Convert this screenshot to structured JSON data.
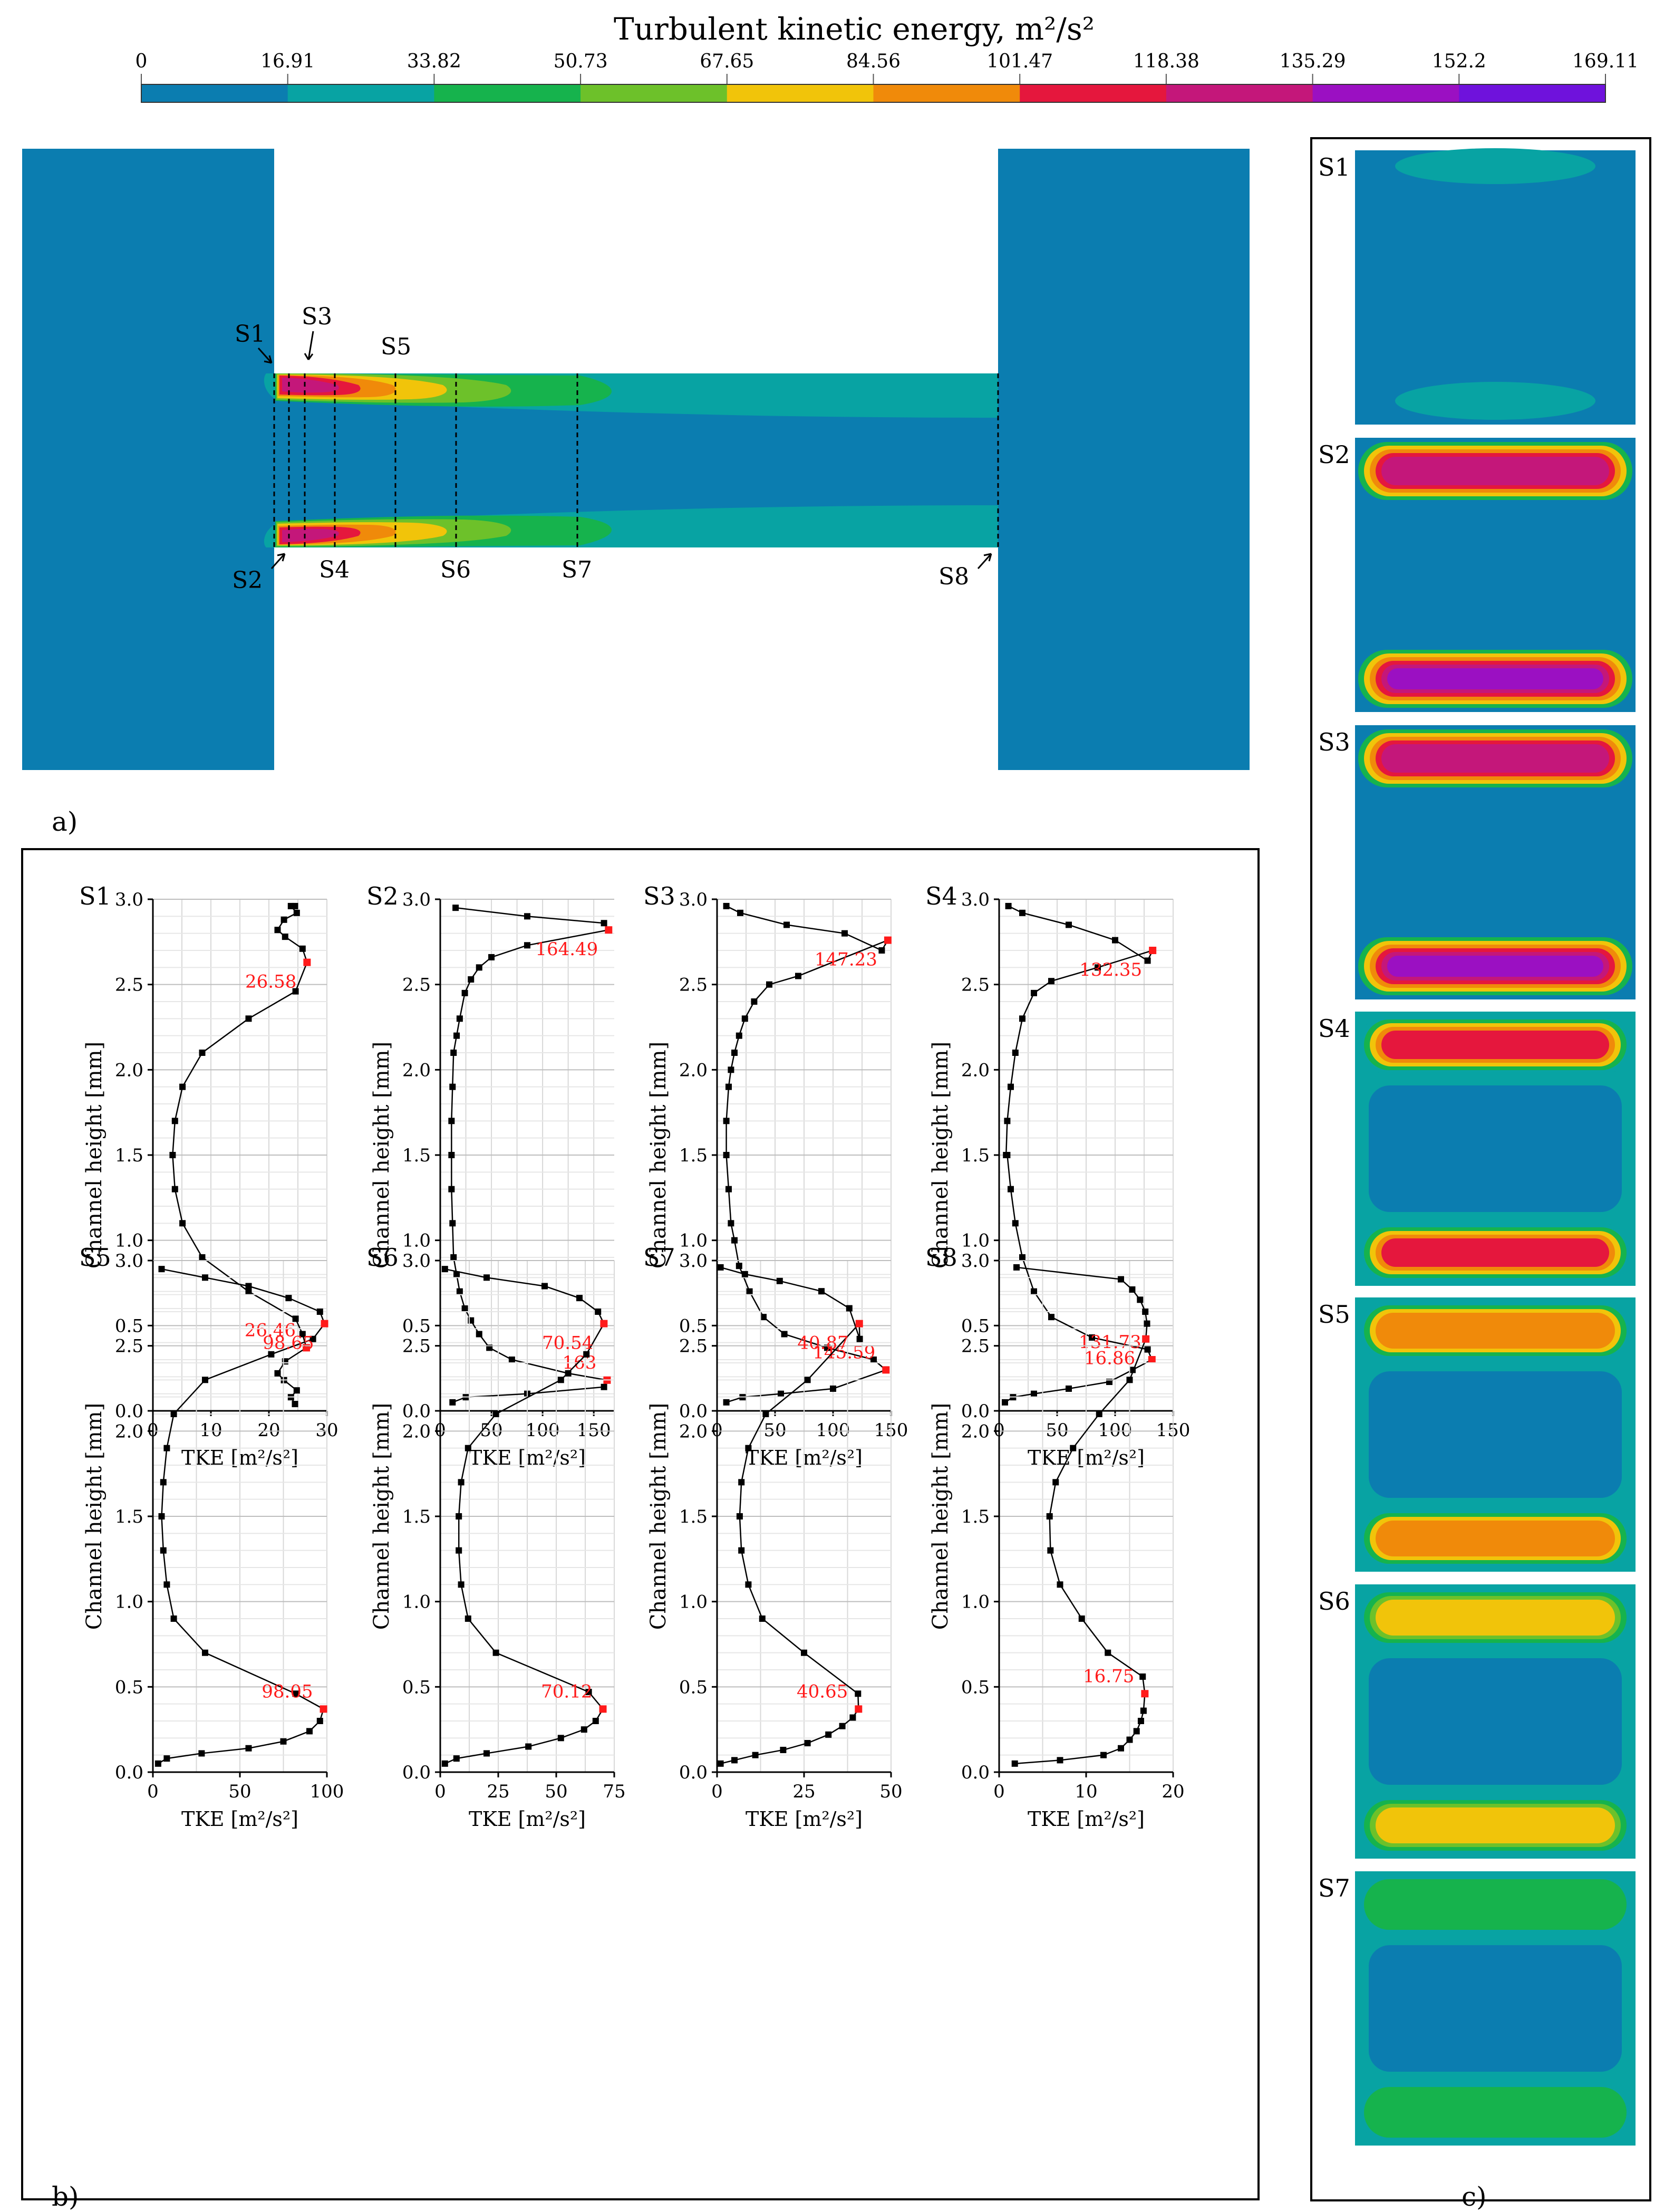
{
  "colorbar": {
    "title": "Turbulent kinetic energy, m²/s²",
    "ticks": [
      "0",
      "16.91",
      "33.82",
      "50.73",
      "67.65",
      "84.56",
      "101.47",
      "118.38",
      "135.29",
      "152.2",
      "169.11"
    ],
    "colors": [
      "#0b7db0",
      "#08a3a3",
      "#16b34d",
      "#6dc12a",
      "#f1c40a",
      "#f08a0a",
      "#e5173d",
      "#c4177a",
      "#9b10c2",
      "#6f12dc"
    ]
  },
  "colors": {
    "background_tke": "#0b7db0",
    "low_tke": "#08a3a3",
    "green_tke": "#16b34d",
    "yellowgreen_tke": "#6dc12a",
    "yellow_tke": "#f1c40a",
    "orange_tke": "#f08a0a",
    "red_tke": "#e5173d",
    "magenta_tke": "#c4177a",
    "purple_tke": "#9b10c2",
    "highlight_point": "#ff1a1a"
  },
  "panel_a": {
    "label": "a)",
    "section_labels": [
      "S1",
      "S2",
      "S3",
      "S4",
      "S5",
      "S6",
      "S7",
      "S8"
    ]
  },
  "panel_b": {
    "label": "b)"
  },
  "panel_c": {
    "label": "c)",
    "sections": [
      "S1",
      "S2",
      "S3",
      "S4",
      "S5",
      "S6",
      "S7"
    ]
  },
  "chart_data": [
    {
      "type": "line",
      "title": "S1",
      "xlabel": "TKE [m²/s²]",
      "ylabel": "Channel height [mm]",
      "xlim": [
        0,
        30
      ],
      "xticks": [
        0,
        10,
        20,
        30
      ],
      "ylim": [
        0,
        3
      ],
      "yticks": [
        0,
        0.5,
        1,
        1.5,
        2,
        2.5,
        3
      ],
      "series": [
        {
          "name": "S1",
          "x": [
            24.5,
            23.8,
            24.8,
            22.6,
            21.5,
            22.8,
            26.46,
            25.8,
            24.6,
            16.5,
            8.5,
            5.1,
            3.8,
            3.4,
            3.8,
            5.1,
            8.5,
            16.5,
            24.6,
            26.58,
            25.8,
            22.8,
            21.5,
            22.6,
            24.8,
            23.8,
            24.5
          ],
          "y": [
            0.04,
            0.08,
            0.12,
            0.18,
            0.22,
            0.29,
            0.37,
            0.45,
            0.54,
            0.7,
            0.9,
            1.1,
            1.3,
            1.5,
            1.7,
            1.9,
            2.1,
            2.3,
            2.46,
            2.63,
            2.71,
            2.78,
            2.82,
            2.88,
            2.92,
            2.96,
            2.96
          ]
        }
      ],
      "annotations": [
        {
          "x": 26.46,
          "y": 0.37,
          "text": "26.46"
        },
        {
          "x": 26.58,
          "y": 2.63,
          "text": "26.58"
        }
      ]
    },
    {
      "type": "line",
      "title": "S2",
      "xlabel": "TKE [m²/s²]",
      "ylabel": "Channel height [mm]",
      "xlim": [
        0,
        170
      ],
      "xticks": [
        0,
        50,
        100,
        150
      ],
      "ylim": [
        0,
        3
      ],
      "yticks": [
        0,
        0.5,
        1,
        1.5,
        2,
        2.5,
        3
      ],
      "series": [
        {
          "name": "S2",
          "x": [
            12,
            25,
            85,
            160,
            163,
            125,
            70,
            48,
            38,
            30,
            24,
            19,
            16,
            13,
            12,
            11,
            11,
            11,
            12,
            13,
            16,
            19,
            24,
            30,
            38,
            50,
            85,
            164.49,
            160,
            85,
            15
          ],
          "y": [
            0.05,
            0.08,
            0.1,
            0.14,
            0.18,
            0.22,
            0.3,
            0.37,
            0.45,
            0.53,
            0.6,
            0.7,
            0.8,
            0.9,
            1.1,
            1.3,
            1.5,
            1.7,
            1.9,
            2.1,
            2.2,
            2.3,
            2.45,
            2.53,
            2.6,
            2.66,
            2.73,
            2.82,
            2.86,
            2.9,
            2.95
          ]
        }
      ],
      "annotations": [
        {
          "x": 163,
          "y": 0.18,
          "text": "163"
        },
        {
          "x": 164.49,
          "y": 2.82,
          "text": "164.49"
        }
      ]
    },
    {
      "type": "line",
      "title": "S3",
      "xlabel": "TKE [m²/s²]",
      "ylabel": "Channel height [mm]",
      "xlim": [
        0,
        150
      ],
      "xticks": [
        0,
        50,
        100,
        150
      ],
      "ylim": [
        0,
        3
      ],
      "yticks": [
        0,
        0.5,
        1,
        1.5,
        2,
        2.5,
        3
      ],
      "series": [
        {
          "name": "S3",
          "x": [
            8,
            22,
            55,
            100,
            145.59,
            135,
            95,
            58,
            40,
            28,
            19,
            15,
            12,
            10,
            8,
            8,
            10,
            12,
            15,
            19,
            24,
            32,
            45,
            70,
            147.23,
            142,
            110,
            60,
            20,
            8
          ],
          "y": [
            0.05,
            0.08,
            0.1,
            0.13,
            0.24,
            0.3,
            0.37,
            0.45,
            0.55,
            0.7,
            0.85,
            1.0,
            1.1,
            1.3,
            1.5,
            1.7,
            1.9,
            2.0,
            2.1,
            2.2,
            2.3,
            2.4,
            2.5,
            2.55,
            2.76,
            2.7,
            2.8,
            2.85,
            2.92,
            2.96
          ]
        }
      ],
      "annotations": [
        {
          "x": 145.59,
          "y": 0.24,
          "text": "145.59"
        },
        {
          "x": 147.23,
          "y": 2.76,
          "text": "147.23"
        }
      ]
    },
    {
      "type": "line",
      "title": "S4",
      "xlabel": "TKE [m²/s²]",
      "ylabel": "Channel height [mm]",
      "xlim": [
        0,
        150
      ],
      "xticks": [
        0,
        50,
        100,
        150
      ],
      "ylim": [
        0,
        3
      ],
      "yticks": [
        0,
        0.5,
        1,
        1.5,
        2,
        2.5,
        3
      ],
      "series": [
        {
          "name": "S4",
          "x": [
            5,
            12,
            30,
            60,
            95,
            115,
            131.73,
            128,
            80,
            45,
            30,
            20,
            14,
            10,
            7,
            6,
            7,
            10,
            14,
            20,
            30,
            45,
            85,
            132.35,
            128,
            100,
            60,
            20,
            8
          ],
          "y": [
            0.05,
            0.08,
            0.1,
            0.13,
            0.17,
            0.24,
            0.3,
            0.36,
            0.43,
            0.55,
            0.7,
            0.9,
            1.1,
            1.3,
            1.5,
            1.5,
            1.7,
            1.9,
            2.1,
            2.3,
            2.45,
            2.52,
            2.6,
            2.7,
            2.64,
            2.76,
            2.85,
            2.92,
            2.96
          ]
        }
      ],
      "annotations": [
        {
          "x": 131.73,
          "y": 0.3,
          "text": "131.73"
        },
        {
          "x": 132.35,
          "y": 2.7,
          "text": "132.35"
        }
      ]
    },
    {
      "type": "line",
      "title": "S5",
      "xlabel": "TKE [m²/s²]",
      "ylabel": "Channel height [mm]",
      "xlim": [
        0,
        100
      ],
      "xticks": [
        0,
        50,
        100
      ],
      "ylim": [
        0,
        3
      ],
      "yticks": [
        0,
        0.5,
        1,
        1.5,
        2,
        2.5,
        3
      ],
      "series": [
        {
          "name": "S5",
          "x": [
            3,
            8,
            28,
            55,
            75,
            90,
            96,
            98.05,
            82,
            30,
            12,
            8,
            6,
            5,
            6,
            8,
            12,
            30,
            68,
            92,
            98.65,
            96,
            78,
            55,
            30,
            5
          ],
          "y": [
            0.05,
            0.08,
            0.11,
            0.14,
            0.18,
            0.24,
            0.3,
            0.37,
            0.46,
            0.7,
            0.9,
            1.1,
            1.3,
            1.5,
            1.7,
            1.9,
            2.1,
            2.3,
            2.45,
            2.54,
            2.63,
            2.7,
            2.78,
            2.85,
            2.9,
            2.95
          ]
        }
      ],
      "annotations": [
        {
          "x": 98.05,
          "y": 0.37,
          "text": "98.05"
        },
        {
          "x": 98.65,
          "y": 2.63,
          "text": "98.65"
        }
      ]
    },
    {
      "type": "line",
      "title": "S6",
      "xlabel": "TKE [m²/s²]",
      "ylabel": "Channel height [mm]",
      "xlim": [
        0,
        75
      ],
      "xticks": [
        0,
        25,
        50,
        75
      ],
      "ylim": [
        0,
        3
      ],
      "yticks": [
        0,
        0.5,
        1,
        1.5,
        2,
        2.5,
        3
      ],
      "series": [
        {
          "name": "S6",
          "x": [
            2,
            7,
            20,
            38,
            52,
            62,
            67,
            70.12,
            64,
            24,
            12,
            9,
            8,
            8,
            9,
            12,
            24,
            52,
            63,
            70.54,
            68,
            60,
            45,
            20,
            2
          ],
          "y": [
            0.05,
            0.08,
            0.11,
            0.15,
            0.2,
            0.25,
            0.3,
            0.37,
            0.47,
            0.7,
            0.9,
            1.1,
            1.3,
            1.5,
            1.7,
            1.9,
            2.1,
            2.3,
            2.45,
            2.63,
            2.7,
            2.78,
            2.85,
            2.9,
            2.95
          ]
        }
      ],
      "annotations": [
        {
          "x": 70.12,
          "y": 0.37,
          "text": "70.12"
        },
        {
          "x": 70.54,
          "y": 2.63,
          "text": "70.54"
        }
      ]
    },
    {
      "type": "line",
      "title": "S7",
      "xlabel": "TKE [m²/s²]",
      "ylabel": "Channel height [mm]",
      "xlim": [
        0,
        50
      ],
      "xticks": [
        0,
        25,
        50
      ],
      "ylim": [
        0,
        3
      ],
      "yticks": [
        0,
        0.5,
        1,
        1.5,
        2,
        2.5,
        3
      ],
      "series": [
        {
          "name": "S7",
          "x": [
            1,
            5,
            11,
            19,
            26,
            32,
            36,
            39,
            40.65,
            40.5,
            25,
            13,
            9,
            7,
            6.5,
            7,
            9,
            14,
            26,
            40.87,
            41,
            38,
            30,
            18,
            8,
            1
          ],
          "y": [
            0.05,
            0.07,
            0.1,
            0.13,
            0.17,
            0.22,
            0.27,
            0.32,
            0.37,
            0.46,
            0.7,
            0.9,
            1.1,
            1.3,
            1.5,
            1.7,
            1.9,
            2.1,
            2.3,
            2.63,
            2.54,
            2.72,
            2.82,
            2.88,
            2.92,
            2.96
          ]
        }
      ],
      "annotations": [
        {
          "x": 40.65,
          "y": 0.37,
          "text": "40.65"
        },
        {
          "x": 40.87,
          "y": 2.63,
          "text": "40.87"
        }
      ]
    },
    {
      "type": "line",
      "title": "S8",
      "xlabel": "TKE [m²/s²]",
      "ylabel": "Channel height [mm]",
      "xlim": [
        0,
        20
      ],
      "xticks": [
        0,
        10,
        20
      ],
      "ylim": [
        0,
        3
      ],
      "yticks": [
        0,
        0.5,
        1,
        1.5,
        2,
        2.5,
        3
      ],
      "series": [
        {
          "name": "S8",
          "x": [
            1.8,
            7,
            12,
            14,
            15,
            15.8,
            16.3,
            16.6,
            16.75,
            16.5,
            12.5,
            9.5,
            7,
            5.9,
            5.8,
            6.5,
            8.5,
            11.5,
            15,
            16.86,
            17,
            16.8,
            16.2,
            15.3,
            14,
            2
          ],
          "y": [
            0.05,
            0.07,
            0.1,
            0.14,
            0.19,
            0.24,
            0.3,
            0.36,
            0.46,
            0.56,
            0.7,
            0.9,
            1.1,
            1.3,
            1.5,
            1.7,
            1.9,
            2.1,
            2.3,
            2.54,
            2.63,
            2.7,
            2.77,
            2.83,
            2.89,
            2.96
          ]
        }
      ],
      "annotations": [
        {
          "x": 16.75,
          "y": 0.46,
          "text": "16.75"
        },
        {
          "x": 16.86,
          "y": 2.54,
          "text": "16.86"
        }
      ]
    }
  ]
}
